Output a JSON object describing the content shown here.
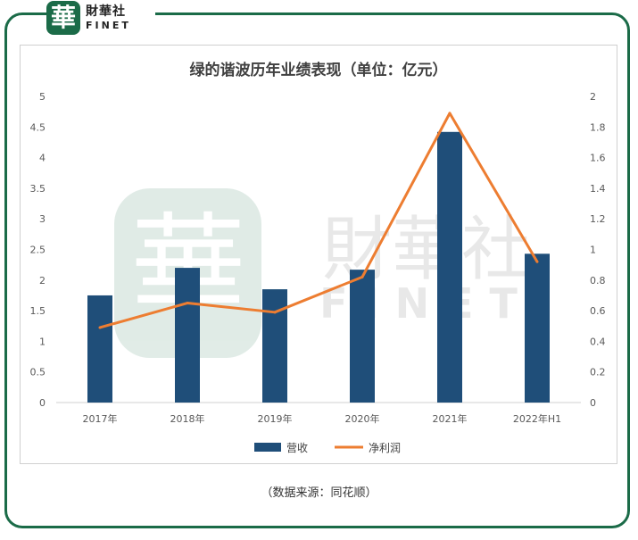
{
  "brand": {
    "seal_char": "華",
    "name_cn": "財華社",
    "name_en": "FINET",
    "color": "#1b6b48"
  },
  "watermark": {
    "seal_char": "華",
    "name_cn": "財華社",
    "name_en": "FINET"
  },
  "source_note": "（数据来源：同花顺）",
  "chart_data": {
    "type": "bar+line",
    "title": "绿的谐波历年业绩表现（单位：亿元）",
    "categories": [
      "2017年",
      "2018年",
      "2019年",
      "2020年",
      "2021年",
      "2022年H1"
    ],
    "series": [
      {
        "name": "营收",
        "type": "bar",
        "axis": "left",
        "color": "#1f4e79",
        "values": [
          1.75,
          2.2,
          1.85,
          2.17,
          4.42,
          2.43
        ]
      },
      {
        "name": "净利润",
        "type": "line",
        "axis": "right",
        "color": "#ed7d31",
        "values": [
          0.49,
          0.65,
          0.59,
          0.82,
          1.89,
          0.92
        ]
      }
    ],
    "y_left": {
      "min": 0,
      "max": 5,
      "ticks": [
        "0",
        "0.5",
        "1",
        "1.5",
        "2",
        "2.5",
        "3",
        "3.5",
        "4",
        "4.5",
        "5"
      ]
    },
    "y_right": {
      "min": 0,
      "max": 2,
      "ticks": [
        "0",
        "0.2",
        "0.4",
        "0.6",
        "0.8",
        "1",
        "1.2",
        "1.4",
        "1.6",
        "1.8",
        "2"
      ]
    },
    "grid": false,
    "legend_position": "bottom"
  }
}
